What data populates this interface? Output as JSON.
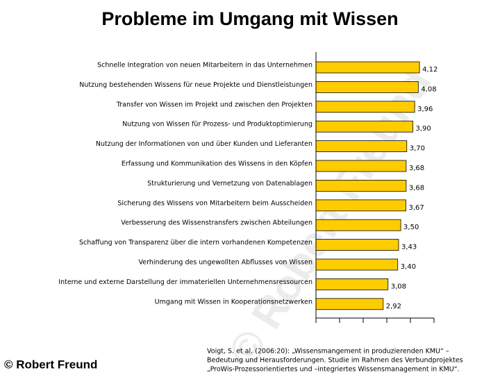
{
  "chart_data": {
    "type": "barh",
    "title": "Probleme im Umgang mit Wissen",
    "categories": [
      "Schnelle Integration von neuen Mitarbeitern in das Unternehmen",
      "Nutzung bestehenden Wissens für neue Projekte und Dienstleistungen",
      "Transfer von Wissen im Projekt und zwischen den Projekten",
      "Nutzung von Wissen für Prozess- und Produktoptimierung",
      "Nutzung der Informationen von und über Kunden und Lieferanten",
      "Erfassung und Kommunikation des Wissens in den Köpfen",
      "Strukturierung und Vernetzung von Datenablagen",
      "Sicherung des Wissens von Mitarbeitern beim Ausscheiden",
      "Verbesserung des Wissenstransfers zwischen Abteilungen",
      "Schaffung von Transparenz über die intern vorhandenen Kompetenzen",
      "Verhinderung des ungewollten Abflusses von Wissen",
      "Interne und externe Darstellung der immateriellen Unternehmensressourcen",
      "Umgang mit Wissen in Kooperationsnetzwerken"
    ],
    "values": [
      4.12,
      4.08,
      3.96,
      3.9,
      3.7,
      3.68,
      3.68,
      3.67,
      3.5,
      3.43,
      3.4,
      3.08,
      2.92
    ],
    "value_labels": [
      "4,12",
      "4,08",
      "3,96",
      "3,90",
      "3,70",
      "3,68",
      "3,68",
      "3,67",
      "3,50",
      "3,43",
      "3,40",
      "3,08",
      "2,92"
    ],
    "color": "#ffcc00",
    "xlim": [
      0.7,
      4.6
    ],
    "xticks": [
      0.7,
      1.48,
      2.26,
      3.04,
      3.82,
      4.6
    ],
    "copyright": "© Robert Freund",
    "source": [
      "Voigt, S. et al. (2006:20): „Wissensmangement in produzierenden KMU“ –",
      "Bedeutung und Herausforderungen. Studie im Rahmen des Verbundprojektes",
      "„ProWis-Prozessorientiertes und –integriertes Wissensmanagement in KMU“."
    ]
  }
}
